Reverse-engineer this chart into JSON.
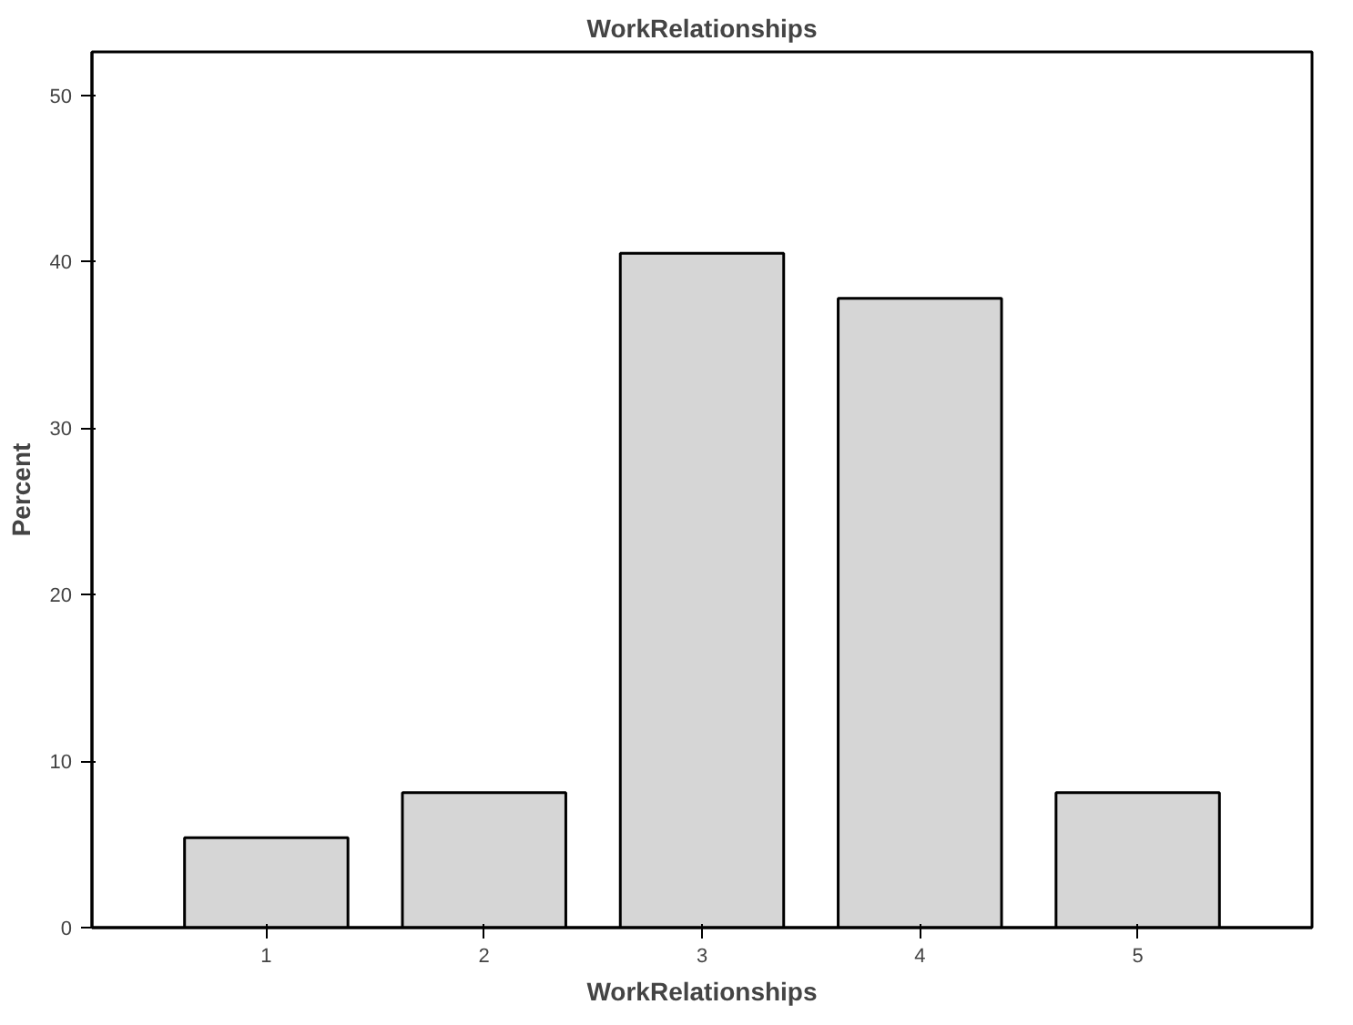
{
  "chart_data": {
    "type": "bar",
    "title": "WorkRelationships",
    "xlabel": "WorkRelationships",
    "ylabel": "Percent",
    "categories": [
      "1",
      "2",
      "3",
      "4",
      "5"
    ],
    "values": [
      5.4,
      8.1,
      40.5,
      37.8,
      8.1
    ],
    "color": "#d6d6d6",
    "ylim": [
      0,
      52.6
    ],
    "yticks": [
      0,
      10,
      20,
      30,
      40,
      50
    ],
    "grid": false
  }
}
